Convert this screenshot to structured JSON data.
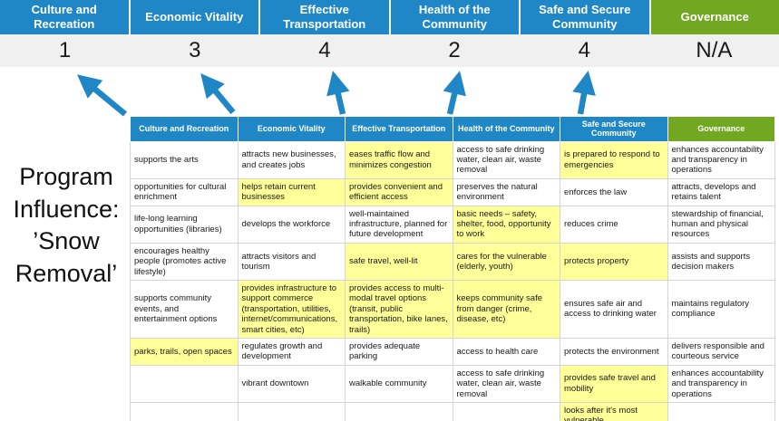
{
  "title": "Program\nInfluence:\n’Snow\nRemoval’",
  "colors": {
    "header_blue": "#1f87c6",
    "header_green": "#72a722",
    "highlight_yellow": "#ffff99",
    "score_band_gray": "#f0f0f0",
    "arrow_blue": "#1f87c6",
    "cell_border": "#d5d5d5"
  },
  "banner": {
    "categories": [
      {
        "label": "Culture and Recreation",
        "color": "#1f87c6"
      },
      {
        "label": "Economic Vitality",
        "color": "#1f87c6"
      },
      {
        "label": "Effective Transportation",
        "color": "#1f87c6"
      },
      {
        "label": "Health of the Community",
        "color": "#1f87c6"
      },
      {
        "label": "Safe and Secure Community",
        "color": "#1f87c6"
      },
      {
        "label": "Governance",
        "color": "#72a722"
      }
    ],
    "scores": [
      "1",
      "3",
      "4",
      "2",
      "4",
      "N/A"
    ]
  },
  "table": {
    "headers": [
      {
        "label": "Culture and Recreation",
        "color": "#1f87c6"
      },
      {
        "label": "Economic Vitality",
        "color": "#1f87c6"
      },
      {
        "label": "Effective Transportation",
        "color": "#1f87c6"
      },
      {
        "label": "Health of the Community",
        "color": "#1f87c6"
      },
      {
        "label": "Safe and Secure Community",
        "color": "#1f87c6"
      },
      {
        "label": "Governance",
        "color": "#72a722"
      }
    ],
    "rows": [
      [
        {
          "t": "supports the arts",
          "hl": false
        },
        {
          "t": "attracts new businesses, and creates jobs",
          "hl": false
        },
        {
          "t": "eases traffic flow and minimizes congestion",
          "hl": true
        },
        {
          "t": "access to safe drinking water, clean air, waste removal",
          "hl": false
        },
        {
          "t": "is prepared to respond to emergencies",
          "hl": true
        },
        {
          "t": "enhances accountability and transparency in operations",
          "hl": false
        }
      ],
      [
        {
          "t": "opportunities for cultural enrichment",
          "hl": false
        },
        {
          "t": "helps retain current businesses",
          "hl": true
        },
        {
          "t": "provides convenient and efficient access",
          "hl": true
        },
        {
          "t": "preserves the natural environment",
          "hl": false
        },
        {
          "t": "enforces the law",
          "hl": false
        },
        {
          "t": "attracts, develops and retains talent",
          "hl": false
        }
      ],
      [
        {
          "t": "life-long learning opportunities (libraries)",
          "hl": false
        },
        {
          "t": "develops the workforce",
          "hl": false
        },
        {
          "t": "well-maintained infrastructure, planned for future development",
          "hl": false
        },
        {
          "t": "basic needs – safety, shelter, food, opportunity to work",
          "hl": true
        },
        {
          "t": "reduces crime",
          "hl": false
        },
        {
          "t": "stewardship of financial, human and physical resources",
          "hl": false
        }
      ],
      [
        {
          "t": "encourages healthy people (promotes active lifestyle)",
          "hl": false
        },
        {
          "t": "attracts visitors and tourism",
          "hl": false
        },
        {
          "t": "safe travel, well-lit",
          "hl": true
        },
        {
          "t": "cares for the vulnerable (elderly, youth)",
          "hl": true
        },
        {
          "t": "protects property",
          "hl": true
        },
        {
          "t": "assists and supports decision makers",
          "hl": false
        }
      ],
      [
        {
          "t": "supports community events, and entertainment options",
          "hl": false
        },
        {
          "t": "provides infrastructure to support commerce (transportation, utilities, internet/communications, smart cities, etc)",
          "hl": true
        },
        {
          "t": "provides access to multi-modal travel options (transit, public transportation, bike lanes, trails)",
          "hl": true
        },
        {
          "t": "keeps community safe from danger (crime, disease, etc)",
          "hl": true
        },
        {
          "t": "ensures safe air and access to drinking water",
          "hl": false
        },
        {
          "t": "maintains regulatory compliance",
          "hl": false
        }
      ],
      [
        {
          "t": "parks, trails, open spaces",
          "hl": true
        },
        {
          "t": "regulates growth and development",
          "hl": false
        },
        {
          "t": "provides adequate parking",
          "hl": false
        },
        {
          "t": "access to health care",
          "hl": false
        },
        {
          "t": "protects the environment",
          "hl": false
        },
        {
          "t": "delivers responsible and courteous service",
          "hl": false
        }
      ],
      [
        {
          "t": "",
          "hl": false
        },
        {
          "t": "vibrant downtown",
          "hl": false
        },
        {
          "t": "walkable community",
          "hl": false
        },
        {
          "t": "access to safe drinking water, clean air, waste removal",
          "hl": false
        },
        {
          "t": "provides safe travel and mobility",
          "hl": true
        },
        {
          "t": "enhances accountability and transparency in operations",
          "hl": false
        }
      ],
      [
        {
          "t": "",
          "hl": false
        },
        {
          "t": "",
          "hl": false
        },
        {
          "t": "",
          "hl": false
        },
        {
          "t": "",
          "hl": false
        },
        {
          "t": "looks after it's most vulnerable",
          "hl": true
        },
        {
          "t": "",
          "hl": false
        }
      ]
    ]
  },
  "chart_data": {
    "type": "table",
    "title": "Program Influence: 'Snow Removal'",
    "categories": [
      "Culture and Recreation",
      "Economic Vitality",
      "Effective Transportation",
      "Health of the Community",
      "Safe and Secure Community",
      "Governance"
    ],
    "influence_scores": [
      1,
      3,
      4,
      2,
      4,
      null
    ],
    "score_labels": [
      "1",
      "3",
      "4",
      "2",
      "4",
      "N/A"
    ],
    "highlighted_counts_per_category": [
      1,
      2,
      4,
      3,
      4,
      0
    ]
  }
}
